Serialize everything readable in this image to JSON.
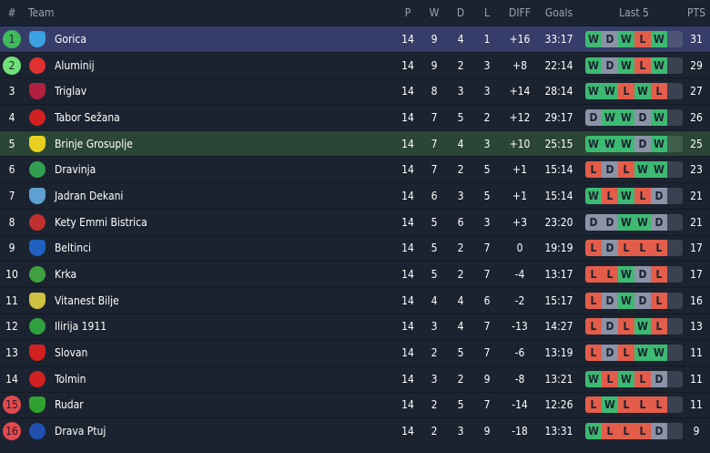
{
  "header": {
    "rank": "#",
    "team": "Team",
    "p": "P",
    "w": "W",
    "d": "D",
    "l": "L",
    "diff": "DIFF",
    "goals": "Goals",
    "last5": "Last 5",
    "pts": "PTS"
  },
  "colors": {
    "W": "#3dba72",
    "D": "#8b93a6",
    "L": "#e35d4a",
    "promo1": "#3dba5a",
    "promo2": "#72e07a",
    "releg": "#e5484d",
    "row_highlight_1": "#353d68",
    "row_highlight_5": "#2a4636"
  },
  "rows": [
    {
      "rank": "1",
      "team": "Gorica",
      "logo_color": "#3aa0e0",
      "p": "14",
      "w": "9",
      "d": "4",
      "l": "1",
      "diff": "+16",
      "goals": "33:17",
      "form": [
        "W",
        "D",
        "W",
        "L",
        "W"
      ],
      "pts": "31",
      "badge": "promo1"
    },
    {
      "rank": "2",
      "team": "Aluminij",
      "logo_color": "#e03030",
      "p": "14",
      "w": "9",
      "d": "2",
      "l": "3",
      "diff": "+8",
      "goals": "22:14",
      "form": [
        "W",
        "D",
        "W",
        "L",
        "W"
      ],
      "pts": "29",
      "badge": "promo2"
    },
    {
      "rank": "3",
      "team": "Triglav",
      "logo_color": "#b02040",
      "p": "14",
      "w": "8",
      "d": "3",
      "l": "3",
      "diff": "+14",
      "goals": "28:14",
      "form": [
        "W",
        "W",
        "L",
        "W",
        "L"
      ],
      "pts": "27"
    },
    {
      "rank": "4",
      "team": "Tabor Sežana",
      "logo_color": "#d02020",
      "p": "14",
      "w": "7",
      "d": "5",
      "l": "2",
      "diff": "+12",
      "goals": "29:17",
      "form": [
        "D",
        "W",
        "W",
        "D",
        "W"
      ],
      "pts": "26"
    },
    {
      "rank": "5",
      "team": "Brinje Grosuplje",
      "logo_color": "#e8d020",
      "p": "14",
      "w": "7",
      "d": "4",
      "l": "3",
      "diff": "+10",
      "goals": "25:15",
      "form": [
        "W",
        "W",
        "W",
        "D",
        "W"
      ],
      "pts": "25"
    },
    {
      "rank": "6",
      "team": "Dravinja",
      "logo_color": "#30a050",
      "p": "14",
      "w": "7",
      "d": "2",
      "l": "5",
      "diff": "+1",
      "goals": "15:14",
      "form": [
        "L",
        "D",
        "L",
        "W",
        "W"
      ],
      "pts": "23"
    },
    {
      "rank": "7",
      "team": "Jadran Dekani",
      "logo_color": "#60a0d0",
      "p": "14",
      "w": "6",
      "d": "3",
      "l": "5",
      "diff": "+1",
      "goals": "15:14",
      "form": [
        "W",
        "L",
        "W",
        "L",
        "D"
      ],
      "pts": "21"
    },
    {
      "rank": "8",
      "team": "Kety Emmi Bistrica",
      "logo_color": "#c03030",
      "p": "14",
      "w": "5",
      "d": "6",
      "l": "3",
      "diff": "+3",
      "goals": "23:20",
      "form": [
        "D",
        "D",
        "W",
        "W",
        "D"
      ],
      "pts": "21"
    },
    {
      "rank": "9",
      "team": "Beltinci",
      "logo_color": "#2060c0",
      "p": "14",
      "w": "5",
      "d": "2",
      "l": "7",
      "diff": "0",
      "goals": "19:19",
      "form": [
        "L",
        "D",
        "L",
        "L",
        "L"
      ],
      "pts": "17"
    },
    {
      "rank": "10",
      "team": "Krka",
      "logo_color": "#40a040",
      "p": "14",
      "w": "5",
      "d": "2",
      "l": "7",
      "diff": "-4",
      "goals": "13:17",
      "form": [
        "L",
        "L",
        "W",
        "D",
        "L"
      ],
      "pts": "17"
    },
    {
      "rank": "11",
      "team": "Vitanest Bilje",
      "logo_color": "#d0c040",
      "p": "14",
      "w": "4",
      "d": "4",
      "l": "6",
      "diff": "-2",
      "goals": "15:17",
      "form": [
        "L",
        "D",
        "W",
        "D",
        "L"
      ],
      "pts": "16"
    },
    {
      "rank": "12",
      "team": "Ilirija 1911",
      "logo_color": "#30a040",
      "p": "14",
      "w": "3",
      "d": "4",
      "l": "7",
      "diff": "-13",
      "goals": "14:27",
      "form": [
        "L",
        "D",
        "L",
        "W",
        "L"
      ],
      "pts": "13"
    },
    {
      "rank": "13",
      "team": "Slovan",
      "logo_color": "#d02020",
      "p": "14",
      "w": "2",
      "d": "5",
      "l": "7",
      "diff": "-6",
      "goals": "13:19",
      "form": [
        "L",
        "D",
        "L",
        "W",
        "W"
      ],
      "pts": "11"
    },
    {
      "rank": "14",
      "team": "Tolmin",
      "logo_color": "#d02020",
      "p": "14",
      "w": "3",
      "d": "2",
      "l": "9",
      "diff": "-8",
      "goals": "13:21",
      "form": [
        "W",
        "L",
        "W",
        "L",
        "D"
      ],
      "pts": "11"
    },
    {
      "rank": "15",
      "team": "Rudar",
      "logo_color": "#30a030",
      "p": "14",
      "w": "2",
      "d": "5",
      "l": "7",
      "diff": "-14",
      "goals": "12:26",
      "form": [
        "L",
        "W",
        "L",
        "L",
        "L"
      ],
      "pts": "11",
      "badge": "releg"
    },
    {
      "rank": "16",
      "team": "Drava Ptuj",
      "logo_color": "#2050b0",
      "p": "14",
      "w": "2",
      "d": "3",
      "l": "9",
      "diff": "-18",
      "goals": "13:31",
      "form": [
        "W",
        "L",
        "L",
        "L",
        "D"
      ],
      "pts": "9",
      "badge": "releg"
    }
  ]
}
